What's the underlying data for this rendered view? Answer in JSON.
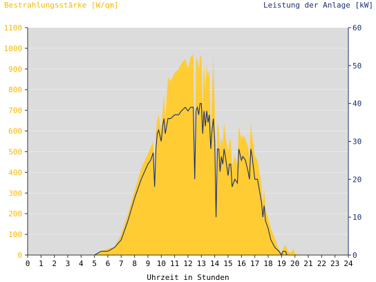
{
  "chart_data": {
    "type": "area",
    "left_axis_title": "Bestrahlungsstärke [W/qm]",
    "right_axis_title": "Leistung der Anlage [kW]",
    "xlabel": "Uhrzeit in Stunden",
    "xlim": [
      0,
      24
    ],
    "ylim_left": [
      0,
      1100
    ],
    "ylim_right": [
      0,
      60
    ],
    "x_ticks": [
      "0",
      "1",
      "2",
      "3",
      "4",
      "5",
      "6",
      "7",
      "8",
      "9",
      "10",
      "11",
      "12",
      "13",
      "14",
      "15",
      "16",
      "17",
      "18",
      "19",
      "20",
      "21",
      "22",
      "23",
      "24"
    ],
    "y_left_ticks": [
      "0",
      "100",
      "200",
      "300",
      "400",
      "500",
      "600",
      "700",
      "800",
      "900",
      "1000",
      "1100"
    ],
    "y_right_ticks": [
      "0",
      "10",
      "20",
      "30",
      "40",
      "50",
      "60"
    ],
    "grid": true,
    "colors": {
      "plot_bg": "#dcdcdc",
      "irradiance": "#ffcc33",
      "power": "#1a2e6e",
      "left_axis": "#f5b800",
      "right_axis": "#1a2e6e"
    },
    "series": [
      {
        "name": "Bestrahlungsstärke [W/qm]",
        "axis": "left",
        "x": [
          0,
          5.0,
          5.5,
          6.0,
          6.5,
          7.0,
          7.5,
          8.0,
          8.5,
          9.0,
          9.2,
          9.4,
          9.5,
          9.6,
          9.7,
          9.8,
          10.0,
          10.1,
          10.2,
          10.3,
          10.5,
          10.7,
          11.0,
          11.3,
          11.5,
          11.8,
          12.0,
          12.2,
          12.4,
          12.5,
          12.6,
          12.7,
          12.8,
          12.9,
          13.0,
          13.1,
          13.2,
          13.3,
          13.4,
          13.5,
          13.6,
          13.7,
          13.8,
          13.9,
          14.0,
          14.1,
          14.2,
          14.3,
          14.4,
          14.5,
          14.6,
          14.7,
          14.8,
          15.0,
          15.1,
          15.2,
          15.3,
          15.5,
          15.7,
          15.8,
          16.0,
          16.1,
          16.3,
          16.5,
          16.6,
          16.7,
          16.8,
          17.0,
          17.2,
          17.4,
          17.5,
          17.6,
          17.7,
          17.8,
          17.9,
          18.0,
          18.2,
          18.5,
          18.8,
          19.0,
          19.1,
          19.3,
          19.4,
          19.6,
          19.8,
          19.9,
          20.0,
          20.1,
          20.3,
          20.5,
          21.0,
          24
        ],
        "values": [
          0,
          2,
          20,
          30,
          40,
          100,
          200,
          310,
          420,
          490,
          520,
          550,
          360,
          600,
          650,
          680,
          600,
          700,
          780,
          660,
          860,
          840,
          880,
          900,
          925,
          950,
          900,
          960,
          970,
          360,
          940,
          950,
          900,
          960,
          970,
          700,
          930,
          800,
          920,
          860,
          900,
          580,
          760,
          960,
          720,
          250,
          640,
          620,
          520,
          570,
          540,
          640,
          580,
          500,
          550,
          560,
          430,
          480,
          440,
          620,
          560,
          580,
          560,
          520,
          470,
          640,
          580,
          480,
          460,
          380,
          340,
          250,
          320,
          230,
          200,
          180,
          130,
          80,
          30,
          10,
          30,
          50,
          30,
          10,
          20,
          30,
          10,
          5,
          2,
          0,
          0,
          0
        ],
        "style": "filled area"
      },
      {
        "name": "Leistung der Anlage [kW]",
        "axis": "right",
        "x": [
          0,
          5.0,
          5.5,
          6.0,
          6.5,
          7.0,
          7.5,
          8.0,
          8.5,
          9.0,
          9.2,
          9.4,
          9.5,
          9.6,
          9.7,
          9.8,
          10.0,
          10.1,
          10.2,
          10.3,
          10.5,
          10.7,
          11.0,
          11.3,
          11.5,
          11.8,
          12.0,
          12.2,
          12.4,
          12.5,
          12.6,
          12.7,
          12.8,
          12.9,
          13.0,
          13.1,
          13.2,
          13.3,
          13.4,
          13.5,
          13.6,
          13.7,
          13.8,
          13.9,
          14.0,
          14.1,
          14.2,
          14.3,
          14.4,
          14.5,
          14.6,
          14.7,
          14.8,
          15.0,
          15.1,
          15.2,
          15.3,
          15.5,
          15.7,
          15.8,
          16.0,
          16.1,
          16.3,
          16.5,
          16.6,
          16.7,
          16.8,
          17.0,
          17.2,
          17.4,
          17.5,
          17.6,
          17.7,
          17.8,
          17.9,
          18.0,
          18.2,
          18.5,
          18.8,
          19.0,
          19.1,
          19.3,
          19.4,
          19.6,
          19.8,
          19.9,
          20.0,
          20.1,
          20.3,
          20.5,
          21.0,
          24
        ],
        "values": [
          0,
          0,
          1,
          1,
          2,
          4,
          9,
          15,
          20,
          24,
          25,
          27,
          18,
          28,
          32,
          33,
          30,
          34,
          36,
          32,
          36,
          36,
          37,
          37,
          38,
          39,
          38,
          39,
          39,
          20,
          38,
          39,
          37,
          40,
          40,
          32,
          38,
          34,
          38,
          35,
          37,
          28,
          33,
          36,
          30,
          10,
          28,
          28,
          22,
          26,
          24,
          28,
          26,
          21,
          24,
          24,
          18,
          20,
          19,
          28,
          25,
          26,
          25,
          22,
          20,
          28,
          26,
          20,
          20,
          16,
          14,
          10,
          13,
          9,
          8,
          7,
          4,
          2,
          1,
          0,
          1,
          1,
          0,
          0,
          0,
          0,
          0,
          0,
          0,
          0,
          0,
          0
        ],
        "style": "line"
      }
    ]
  }
}
